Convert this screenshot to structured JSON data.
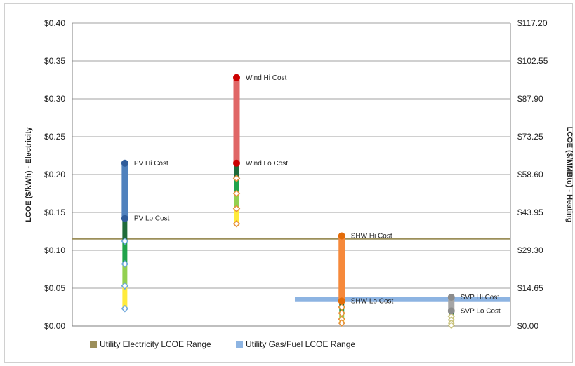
{
  "chart_data": {
    "type": "range-dot",
    "left_axis": {
      "label": "LCOE ($/kWh) - Electricity",
      "ticks": [
        "$0.00",
        "$0.05",
        "$0.10",
        "$0.15",
        "$0.20",
        "$0.25",
        "$0.30",
        "$0.35",
        "$0.40"
      ],
      "ylim": [
        0,
        0.4
      ]
    },
    "right_axis": {
      "label": "LCOE ($/MMBtu) - Heating",
      "ticks": [
        "$0.00",
        "$14.65",
        "$29.30",
        "$43.95",
        "$58.60",
        "$73.25",
        "$87.90",
        "$102.55",
        "$117.20"
      ],
      "ylim": [
        0,
        117.2
      ]
    },
    "grid": true,
    "reference_ranges": [
      {
        "name": "Utility Electricity LCOE Range",
        "value": 0.115,
        "x_from": 0.0,
        "x_to": 1.0,
        "color": "#9c8f5a"
      },
      {
        "name": "Utility Gas/Fuel LCOE Range",
        "value": 0.035,
        "x_from": 0.508,
        "x_to": 1.0,
        "color": "#8db4e2"
      }
    ],
    "technologies": [
      {
        "x": 0.12,
        "hi_label": "PV Hi Cost",
        "lo_label": "PV Lo Cost",
        "hi": 0.215,
        "lo": 0.142,
        "hi_lo_color": "#4f81bd",
        "dot_color": "#2e5b9a",
        "steps": [
          {
            "value": 0.142,
            "color": "#1f6b3a"
          },
          {
            "value": 0.112,
            "color": "#1fa34a"
          },
          {
            "value": 0.082,
            "color": "#92d050"
          },
          {
            "value": 0.053,
            "color": "#ffeb3b"
          },
          {
            "value": 0.023,
            "color": null
          }
        ],
        "marker_color": "#6fa8dc"
      },
      {
        "x": 0.375,
        "hi_label": "Wind Hi Cost",
        "lo_label": "Wind Lo Cost",
        "hi": 0.328,
        "lo": 0.215,
        "hi_lo_color": "#e06666",
        "dot_color": "#cc0000",
        "steps": [
          {
            "value": 0.215,
            "color": "#1f6b3a"
          },
          {
            "value": 0.195,
            "color": "#1fa34a"
          },
          {
            "value": 0.175,
            "color": "#92d050"
          },
          {
            "value": 0.155,
            "color": "#ffeb3b"
          },
          {
            "value": 0.135,
            "color": null
          }
        ],
        "marker_color": "#e69138"
      },
      {
        "x": 0.615,
        "hi_label": "SHW Hi Cost",
        "lo_label": "SHW Lo Cost",
        "hi": 0.119,
        "lo": 0.033,
        "hi_lo_color": "#f6893b",
        "dot_color": "#e36c09",
        "steps": [
          {
            "value": 0.033,
            "color": "#1f6b3a"
          },
          {
            "value": 0.025,
            "color": "#1fa34a"
          },
          {
            "value": 0.017,
            "color": "#92d050"
          },
          {
            "value": 0.009,
            "color": "#ffeb3b"
          },
          {
            "value": 0.004,
            "color": null
          }
        ],
        "marker_color": "#e69138"
      },
      {
        "x": 0.865,
        "hi_label": "SVP Hi Cost",
        "lo_label": "SVP Lo Cost",
        "hi": 0.038,
        "lo": 0.02,
        "hi_lo_color": "#a6a6a6",
        "dot_color": "#8c8c8c",
        "steps": [
          {
            "value": 0.02,
            "color": "#1f6b3a"
          },
          {
            "value": 0.013,
            "color": "#1fa34a"
          },
          {
            "value": 0.008,
            "color": "#92d050"
          },
          {
            "value": 0.004,
            "color": "#ffeb3b"
          },
          {
            "value": 0.001,
            "color": null
          }
        ],
        "marker_color": "#c9c27a"
      }
    ],
    "legend": {
      "placement": "bottom",
      "entries": [
        {
          "label": "Utility Electricity LCOE Range",
          "color": "#9c8f5a"
        },
        {
          "label": "Utility Gas/Fuel LCOE Range",
          "color": "#8db4e2"
        }
      ]
    }
  }
}
